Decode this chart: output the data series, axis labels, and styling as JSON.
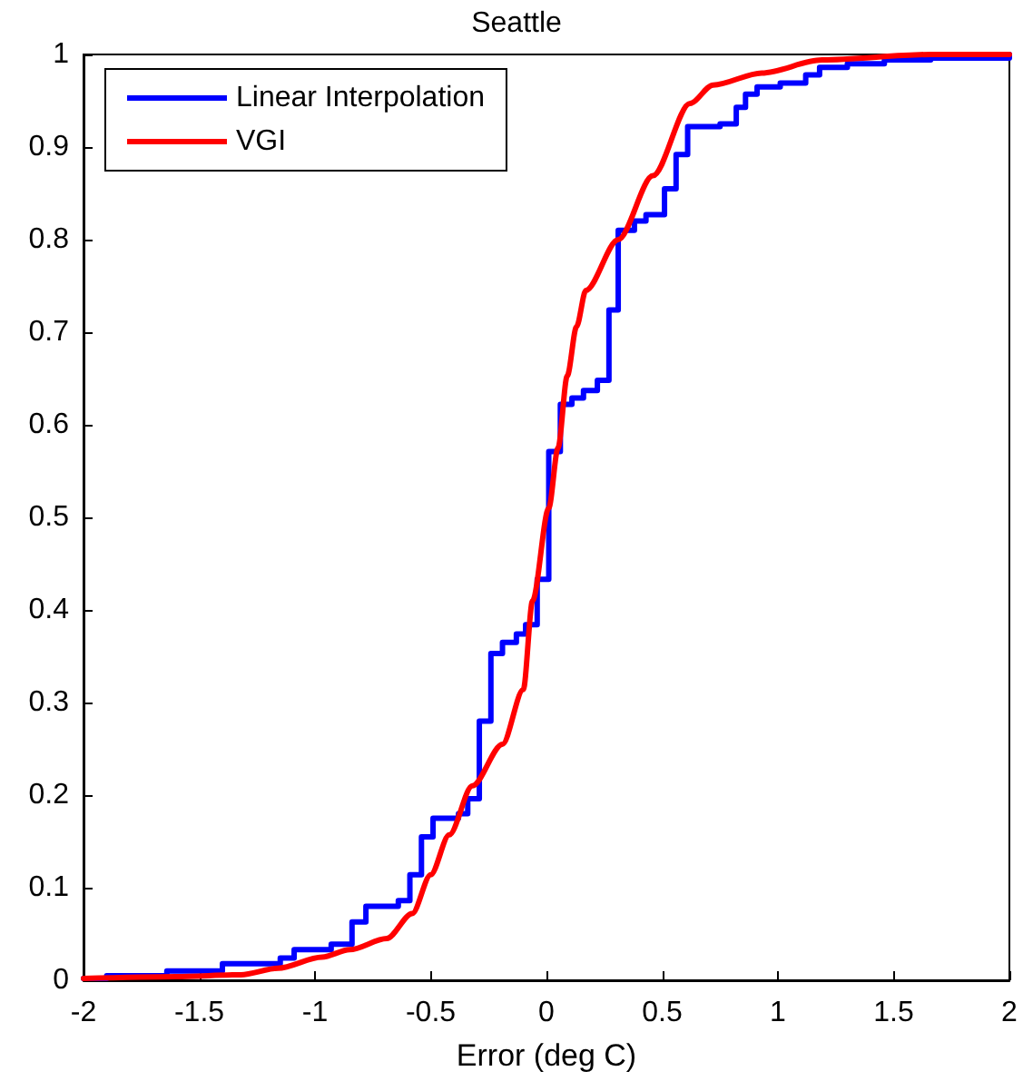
{
  "chart_data": {
    "type": "line",
    "title": "Seattle",
    "xlabel": "Error (deg C)",
    "xlim": [
      -2,
      2
    ],
    "xticks": [
      -2,
      -1.5,
      -1,
      -0.5,
      0,
      0.5,
      1,
      1.5,
      2
    ],
    "ylim": [
      0,
      1
    ],
    "yticks": [
      0,
      0.1,
      0.2,
      0.3,
      0.4,
      0.5,
      0.6,
      0.7,
      0.8,
      0.9,
      1
    ],
    "grid": false,
    "legend": "top left",
    "marker": "none",
    "line_style": "solid",
    "series": [
      {
        "name": "Linear Interpolation",
        "type": "step",
        "color": "#0000ff",
        "x": [
          -2,
          -1.9,
          -1.64,
          -1.4,
          -1.15,
          -1.09,
          -0.93,
          -0.84,
          -0.78,
          -0.64,
          -0.59,
          -0.54,
          -0.49,
          -0.38,
          -0.34,
          -0.29,
          -0.24,
          -0.19,
          -0.13,
          -0.09,
          -0.04,
          0.01,
          0.06,
          0.11,
          0.16,
          0.22,
          0.27,
          0.31,
          0.38,
          0.43,
          0.51,
          0.56,
          0.61,
          0.75,
          0.82,
          0.86,
          0.91,
          1.01,
          1.12,
          1.18,
          1.3,
          1.46,
          1.66,
          2
        ],
        "values": [
          0.002,
          0.005,
          0.01,
          0.018,
          0.024,
          0.033,
          0.039,
          0.063,
          0.08,
          0.086,
          0.114,
          0.155,
          0.175,
          0.18,
          0.196,
          0.28,
          0.353,
          0.365,
          0.374,
          0.384,
          0.433,
          0.571,
          0.622,
          0.629,
          0.637,
          0.648,
          0.724,
          0.81,
          0.82,
          0.827,
          0.855,
          0.892,
          0.922,
          0.925,
          0.943,
          0.957,
          0.965,
          0.969,
          0.978,
          0.986,
          0.99,
          0.994,
          0.996,
          1
        ]
      },
      {
        "name": "VGI",
        "type": "line",
        "color": "#ff0000",
        "x": [
          -2,
          -1.6,
          -1.32,
          -1.16,
          -0.97,
          -0.85,
          -0.69,
          -0.58,
          -0.5,
          -0.42,
          -0.32,
          -0.19,
          -0.1,
          -0.06,
          0.01,
          0.05,
          0.09,
          0.13,
          0.17,
          0.31,
          0.46,
          0.62,
          0.72,
          0.93,
          1.19,
          1.66,
          2
        ],
        "values": [
          0.002,
          0.004,
          0.006,
          0.013,
          0.025,
          0.033,
          0.045,
          0.072,
          0.114,
          0.157,
          0.21,
          0.255,
          0.314,
          0.41,
          0.51,
          0.575,
          0.653,
          0.706,
          0.745,
          0.8,
          0.869,
          0.947,
          0.967,
          0.98,
          0.994,
          1,
          1
        ]
      }
    ]
  }
}
